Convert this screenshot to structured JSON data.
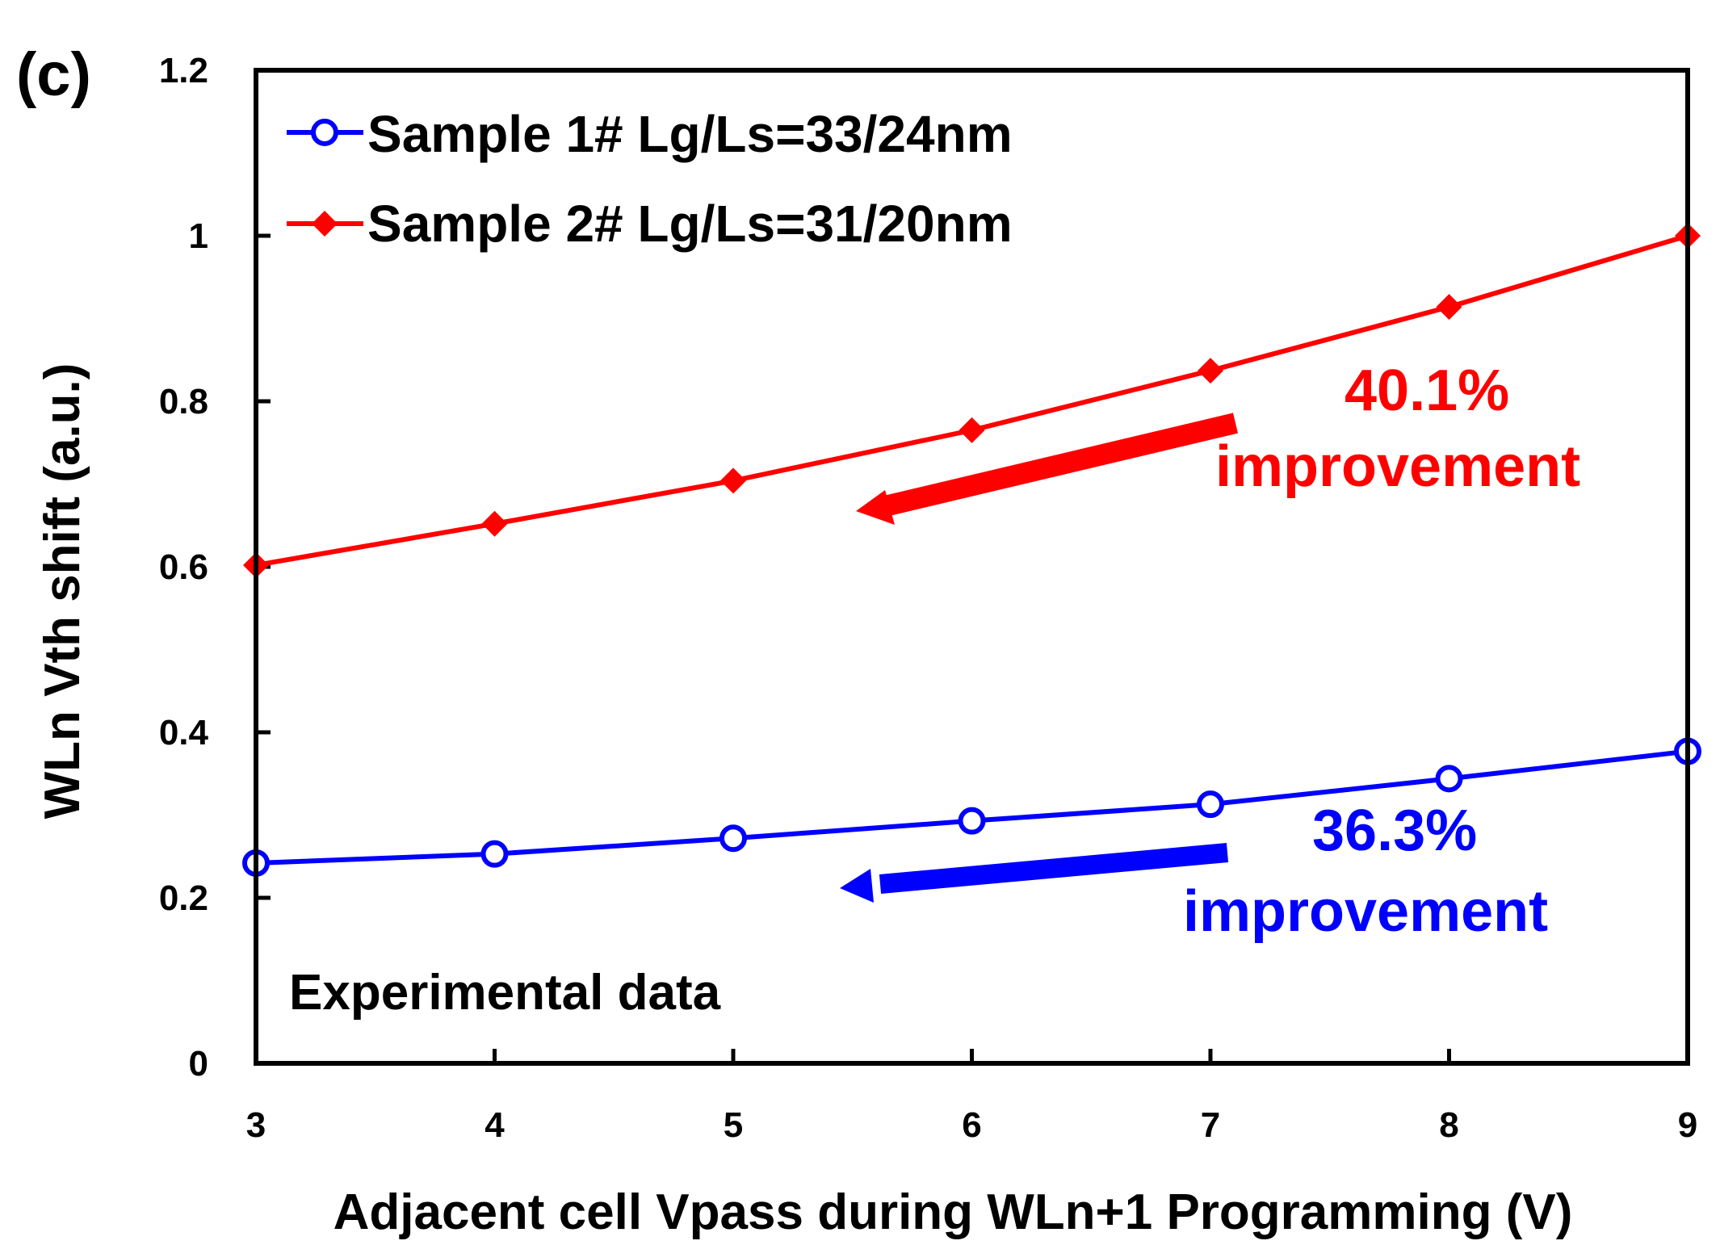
{
  "panel_label": "(c)",
  "chart_data": {
    "type": "line",
    "title": "",
    "xlabel": "Adjacent cell Vpass during WLn+1 Programming (V)",
    "ylabel": "WLn Vth shift (a.u.)",
    "xlim": [
      3,
      9
    ],
    "ylim": [
      0,
      1.2
    ],
    "xticks": [
      "3",
      "4",
      "5",
      "6",
      "7",
      "8",
      "9"
    ],
    "yticks": [
      "0",
      "0.2",
      "0.4",
      "0.6",
      "0.8",
      "1",
      "1.2"
    ],
    "x": [
      3,
      4,
      5,
      6,
      7,
      8,
      9
    ],
    "grid": false,
    "legend_position": "top-left",
    "series": [
      {
        "name": "Sample 1# Lg/Ls=33/24nm",
        "color": "#0000ff",
        "marker": "open-circle",
        "values": [
          0.242,
          0.253,
          0.272,
          0.293,
          0.313,
          0.344,
          0.377
        ]
      },
      {
        "name": "Sample 2# Lg/Ls=31/20nm",
        "color": "#ff0000",
        "marker": "filled-diamond",
        "values": [
          0.602,
          0.652,
          0.704,
          0.765,
          0.837,
          0.914,
          1.0
        ]
      }
    ],
    "annotations": [
      {
        "line1": "40.1%",
        "line2": "improvement",
        "color": "#ff0000",
        "arrow": "pointing-left"
      },
      {
        "line1": "36.3%",
        "line2": "improvement",
        "color": "#0000ff",
        "arrow": "pointing-left"
      }
    ],
    "note": "Experimental data"
  }
}
